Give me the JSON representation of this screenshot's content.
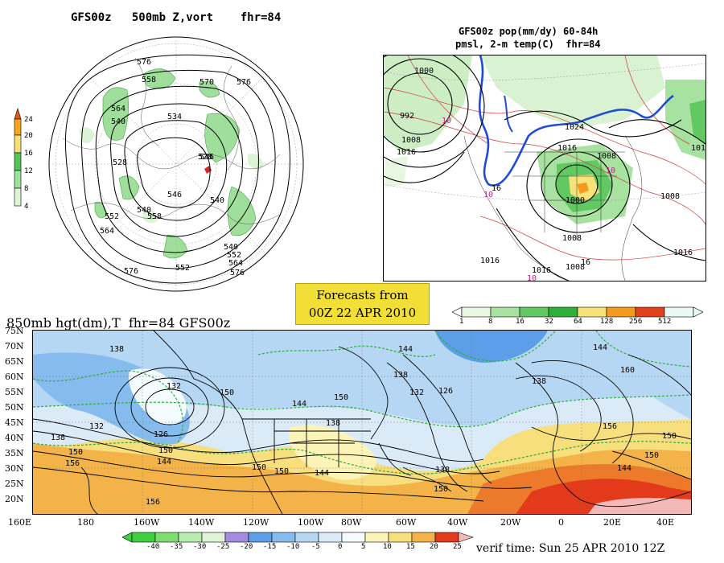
{
  "panel_500mb": {
    "title": "GFS00z   500mb Z,vort    fhr=84",
    "colorbar_labels": [
      "24",
      "20",
      "16",
      "12",
      "8",
      "4"
    ],
    "colorbar_colors": [
      "#e35a1a",
      "#f7a51f",
      "#f5e07a",
      "#52c45a",
      "#9be39c",
      "#ddf5d6"
    ],
    "contour_labels": [
      "576",
      "570",
      "576",
      "558",
      "564",
      "540",
      "528",
      "534",
      "540",
      "546",
      "528",
      "540",
      "552",
      "564",
      "576",
      "540",
      "552",
      "564",
      "576",
      "552",
      "546",
      "558"
    ]
  },
  "panel_pop": {
    "title_line1": "GFS00z pop(mm/dy) 60-84h",
    "title_line2": "pmsl, 2-m temp(C)  fhr=84",
    "contour_labels": [
      "992",
      "1000",
      "1008",
      "1016",
      "1024",
      "1016",
      "1008",
      "1000",
      "1008",
      "1016",
      "1016",
      "1016",
      "1008",
      "1016",
      "1008",
      "10",
      "10",
      "10",
      "10",
      "16",
      "16"
    ],
    "colorbar_labels": [
      "1",
      "8",
      "16",
      "32",
      "64",
      "128",
      "256",
      "512"
    ],
    "colorbar_colors": [
      "#e8f7e2",
      "#a8e2a0",
      "#62c862",
      "#2fae3a",
      "#f7e27a",
      "#f39a1f",
      "#e0421a",
      "#e9f9f5"
    ]
  },
  "forecast_box": {
    "line1": "Forecasts from",
    "line2": "00Z 22 APR 2010"
  },
  "panel_850mb": {
    "title": "850mb hgt(dm),T  fhr=84 GFS00z",
    "lat_labels": [
      "75N",
      "70N",
      "65N",
      "60N",
      "55N",
      "50N",
      "45N",
      "40N",
      "35N",
      "30N",
      "25N",
      "20N"
    ],
    "lon_labels": [
      "160E",
      "180",
      "160W",
      "140W",
      "120W",
      "100W",
      "80W",
      "60W",
      "40W",
      "20W",
      "0",
      "20E",
      "40E"
    ],
    "contour_labels": [
      "138",
      "132",
      "126",
      "132",
      "138",
      "150",
      "150",
      "156",
      "144",
      "150",
      "150",
      "144",
      "138",
      "132",
      "126",
      "138",
      "144",
      "150",
      "144",
      "138",
      "150",
      "156",
      "150",
      "138",
      "144",
      "160",
      "156",
      "150",
      "144",
      "150"
    ],
    "colorbar_labels": [
      "-40",
      "-35",
      "-30",
      "-25",
      "-20",
      "-15",
      "-10",
      "-5",
      "0",
      "5",
      "10",
      "15",
      "20",
      "25"
    ],
    "colorbar_colors": [
      "#3fcf3f",
      "#7fdc6f",
      "#b7ebb0",
      "#e0f3d8",
      "#a58be0",
      "#5d9ee8",
      "#86bbee",
      "#b6d7f3",
      "#dbeaf7",
      "#f3fbff",
      "#fcf3b6",
      "#f7df7e",
      "#f4b348",
      "#ec7a2a",
      "#e23a1a",
      "#f5b8b8"
    ],
    "verif_time": "verif time: Sun 25 APR 2010 12Z"
  }
}
